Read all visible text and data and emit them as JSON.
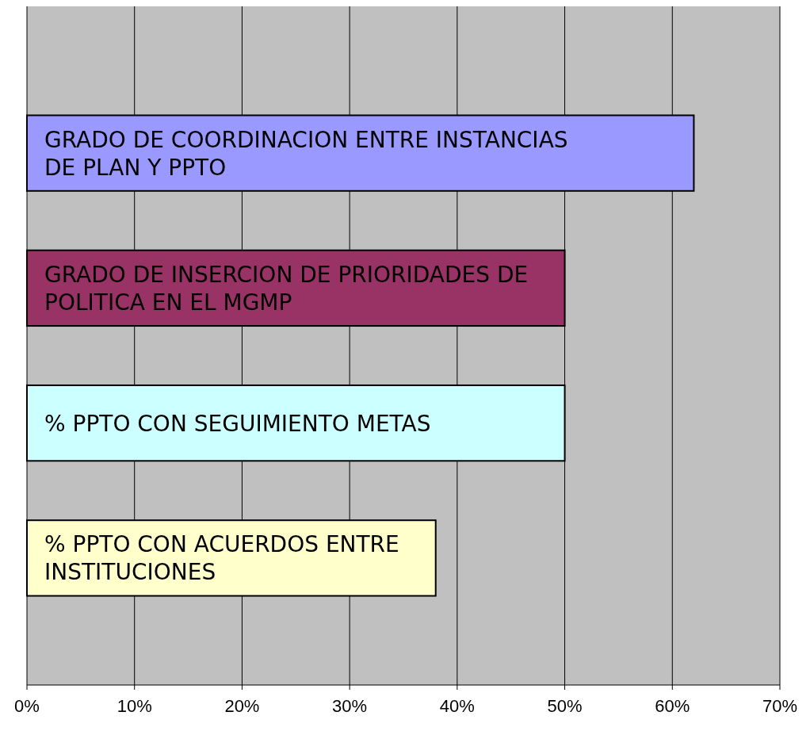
{
  "chart_data": {
    "type": "bar",
    "orientation": "horizontal",
    "categories": [
      "GRADO DE COORDINACION ENTRE INSTANCIAS DE PLAN Y PPTO",
      "GRADO DE INSERCION DE PRIORIDADES DE POLITICA EN EL MGMP",
      "% PPTO CON SEGUIMIENTO METAS",
      "% PPTO CON ACUERDOS ENTRE INSTITUCIONES"
    ],
    "values": [
      62,
      50,
      50,
      38
    ],
    "colors": [
      "#9999ff",
      "#993366",
      "#ccffff",
      "#ffffcc"
    ],
    "xlim": [
      0,
      70
    ],
    "xticks": [
      {
        "value": 0,
        "label": "0%"
      },
      {
        "value": 10,
        "label": "10%"
      },
      {
        "value": 20,
        "label": "20%"
      },
      {
        "value": 30,
        "label": "30%"
      },
      {
        "value": 40,
        "label": "40%"
      },
      {
        "value": 50,
        "label": "50%"
      },
      {
        "value": 60,
        "label": "60%"
      },
      {
        "value": 70,
        "label": "70%"
      }
    ],
    "grid": "x"
  }
}
